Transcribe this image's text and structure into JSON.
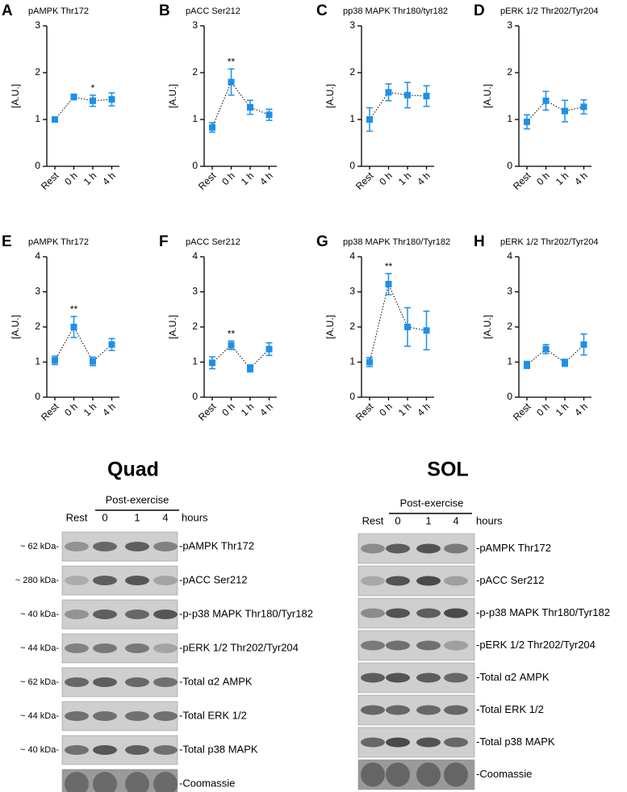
{
  "chart_data": [
    {
      "type": "line",
      "panel": "A",
      "title": "pAMPK Thr172",
      "ylabel": "[A.U.]",
      "categories": [
        "Rest",
        "0 h",
        "1 h",
        "4 h"
      ],
      "values": [
        1.0,
        1.48,
        1.4,
        1.43
      ],
      "errors": [
        0.05,
        0.06,
        0.12,
        0.14
      ],
      "ylim": [
        0,
        3
      ],
      "yticks": [
        0,
        1,
        2,
        3
      ],
      "color": "#1e90e6",
      "annotations": [
        {
          "x": "1 h",
          "text": "*"
        }
      ]
    },
    {
      "type": "line",
      "panel": "B",
      "title": "pACC Ser212",
      "ylabel": "[A.U.]",
      "categories": [
        "Rest",
        "0 h",
        "1 h",
        "4 h"
      ],
      "values": [
        0.83,
        1.8,
        1.26,
        1.1
      ],
      "errors": [
        0.1,
        0.28,
        0.15,
        0.12
      ],
      "ylim": [
        0,
        3
      ],
      "yticks": [
        0,
        1,
        2,
        3
      ],
      "color": "#1e90e6",
      "annotations": [
        {
          "x": "0 h",
          "text": "**"
        }
      ]
    },
    {
      "type": "line",
      "panel": "C",
      "title": "pp38 MAPK Thr180/tyr182",
      "ylabel": "[A.U.]",
      "categories": [
        "Rest",
        "0 h",
        "1 h",
        "4 h"
      ],
      "values": [
        1.0,
        1.58,
        1.52,
        1.5
      ],
      "errors": [
        0.25,
        0.18,
        0.27,
        0.22
      ],
      "ylim": [
        0,
        3
      ],
      "yticks": [
        0,
        1,
        2,
        3
      ],
      "color": "#1e90e6",
      "annotations": []
    },
    {
      "type": "line",
      "panel": "D",
      "title": "pERK 1/2 Thr202/Tyr204",
      "ylabel": "[A.U.]",
      "categories": [
        "Rest",
        "0 h",
        "1 h",
        "4 h"
      ],
      "values": [
        0.95,
        1.4,
        1.18,
        1.27
      ],
      "errors": [
        0.15,
        0.2,
        0.23,
        0.15
      ],
      "ylim": [
        0,
        3
      ],
      "yticks": [
        0,
        1,
        2,
        3
      ],
      "color": "#1e90e6",
      "annotations": []
    },
    {
      "type": "line",
      "panel": "E",
      "title": "pAMPK Thr172",
      "ylabel": "[A.U.]",
      "categories": [
        "Rest",
        "0 h",
        "1 h",
        "4 h"
      ],
      "values": [
        1.05,
        2.0,
        1.02,
        1.5
      ],
      "errors": [
        0.12,
        0.3,
        0.12,
        0.17
      ],
      "ylim": [
        0,
        4
      ],
      "yticks": [
        0,
        1,
        2,
        3,
        4
      ],
      "color": "#1e90e6",
      "annotations": [
        {
          "x": "0 h",
          "text": "**"
        }
      ]
    },
    {
      "type": "line",
      "panel": "F",
      "title": "pACC Ser212",
      "ylabel": "[A.U.]",
      "categories": [
        "Rest",
        "0 h",
        "1 h",
        "4 h"
      ],
      "values": [
        0.98,
        1.48,
        0.82,
        1.37
      ],
      "errors": [
        0.17,
        0.12,
        0.1,
        0.18
      ],
      "ylim": [
        0,
        4
      ],
      "yticks": [
        0,
        1,
        2,
        3,
        4
      ],
      "color": "#1e90e6",
      "annotations": [
        {
          "x": "0 h",
          "text": "**"
        }
      ]
    },
    {
      "type": "line",
      "panel": "G",
      "title": "pp38 MAPK Thr180/Tyr182",
      "ylabel": "[A.U.]",
      "categories": [
        "Rest",
        "0 h",
        "1 h",
        "4 h"
      ],
      "values": [
        1.0,
        3.22,
        2.0,
        1.9
      ],
      "errors": [
        0.13,
        0.3,
        0.55,
        0.55
      ],
      "ylim": [
        0,
        4
      ],
      "yticks": [
        0,
        1,
        2,
        3,
        4
      ],
      "color": "#1e90e6",
      "annotations": [
        {
          "x": "0 h",
          "text": "**"
        }
      ]
    },
    {
      "type": "line",
      "panel": "H",
      "title": "pERK 1/2 Thr202/Tyr204",
      "ylabel": "[A.U.]",
      "categories": [
        "Rest",
        "0 h",
        "1 h",
        "4 h"
      ],
      "values": [
        0.92,
        1.37,
        0.98,
        1.5
      ],
      "errors": [
        0.1,
        0.13,
        0.1,
        0.3
      ],
      "ylim": [
        0,
        4
      ],
      "yticks": [
        0,
        1,
        2,
        3,
        4
      ],
      "color": "#1e90e6",
      "annotations": []
    }
  ],
  "blots": [
    {
      "title": "Quad",
      "group_label": "Post-exercise",
      "lanes": [
        "Rest",
        "0",
        "1",
        "4"
      ],
      "unit": "hours",
      "rows": [
        {
          "size": "~ 62 kDa-",
          "label": "-pAMPK Thr172"
        },
        {
          "size": "~ 280 kDa-",
          "label": "-pACC Ser212"
        },
        {
          "size": "~ 40 kDa-",
          "label": "-p-p38 MAPK Thr180/Tyr182"
        },
        {
          "size": "~ 44 kDa-",
          "label": "-pERK 1/2 Thr202/Tyr204"
        },
        {
          "size": "~ 62 kDa-",
          "label": "-Total α2 AMPK"
        },
        {
          "size": "~ 44 kDa-",
          "label": "-Total ERK 1/2"
        },
        {
          "size": "~ 40 kDa-",
          "label": "-Total p38 MAPK"
        },
        {
          "label": "-Coomassie"
        }
      ]
    },
    {
      "title": "SOL",
      "group_label": "Post-exercise",
      "lanes": [
        "Rest",
        "0",
        "1",
        "4"
      ],
      "unit": "hours",
      "rows": [
        {
          "label": "-pAMPK Thr172"
        },
        {
          "label": "-pACC Ser212"
        },
        {
          "label": "-p-p38 MAPK Thr180/Tyr182"
        },
        {
          "label": "-pERK 1/2 Thr202/Tyr204"
        },
        {
          "label": "-Total α2 AMPK"
        },
        {
          "label": "-Total ERK 1/2"
        },
        {
          "label": "-Total p38 MAPK"
        },
        {
          "label": "-Coomassie"
        }
      ]
    }
  ]
}
